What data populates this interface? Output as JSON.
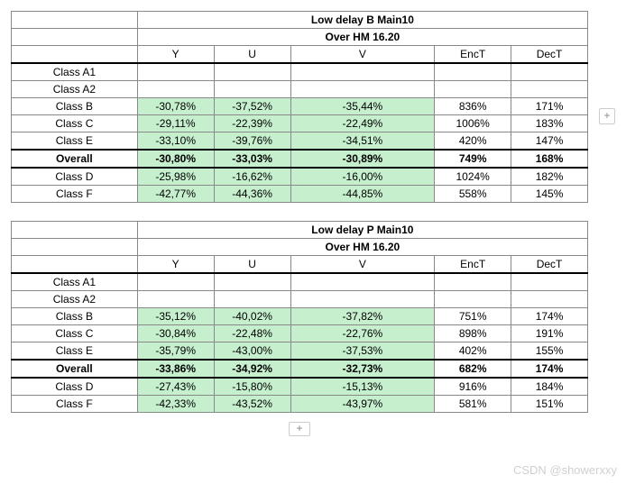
{
  "tables": [
    {
      "title": "Low delay B Main10",
      "subtitle": "Over HM 16.20",
      "headers": [
        "Y",
        "U",
        "V",
        "EncT",
        "DecT"
      ],
      "rows": [
        {
          "label": "Class A1",
          "cells": [
            "",
            "",
            "",
            "",
            ""
          ],
          "green": [
            false,
            false,
            false,
            false,
            false
          ],
          "bold": false
        },
        {
          "label": "Class A2",
          "cells": [
            "",
            "",
            "",
            "",
            ""
          ],
          "green": [
            false,
            false,
            false,
            false,
            false
          ],
          "bold": false
        },
        {
          "label": "Class B",
          "cells": [
            "-30,78%",
            "-37,52%",
            "-35,44%",
            "836%",
            "171%"
          ],
          "green": [
            true,
            true,
            true,
            false,
            false
          ],
          "bold": false
        },
        {
          "label": "Class C",
          "cells": [
            "-29,11%",
            "-22,39%",
            "-22,49%",
            "1006%",
            "183%"
          ],
          "green": [
            true,
            true,
            true,
            false,
            false
          ],
          "bold": false
        },
        {
          "label": "Class E",
          "cells": [
            "-33,10%",
            "-39,76%",
            "-34,51%",
            "420%",
            "147%"
          ],
          "green": [
            true,
            true,
            true,
            false,
            false
          ],
          "bold": false
        },
        {
          "label": "Overall",
          "cells": [
            "-30,80%",
            "-33,03%",
            "-30,89%",
            "749%",
            "168%"
          ],
          "green": [
            true,
            true,
            true,
            false,
            false
          ],
          "bold": true,
          "divider": true
        },
        {
          "label": "Class D",
          "cells": [
            "-25,98%",
            "-16,62%",
            "-16,00%",
            "1024%",
            "182%"
          ],
          "green": [
            true,
            true,
            true,
            false,
            false
          ],
          "bold": false
        },
        {
          "label": "Class F",
          "cells": [
            "-42,77%",
            "-44,36%",
            "-44,85%",
            "558%",
            "145%"
          ],
          "green": [
            true,
            true,
            true,
            false,
            false
          ],
          "bold": false
        }
      ]
    },
    {
      "title": "Low delay P Main10",
      "subtitle": "Over HM 16.20",
      "headers": [
        "Y",
        "U",
        "V",
        "EncT",
        "DecT"
      ],
      "rows": [
        {
          "label": "Class A1",
          "cells": [
            "",
            "",
            "",
            "",
            ""
          ],
          "green": [
            false,
            false,
            false,
            false,
            false
          ],
          "bold": false
        },
        {
          "label": "Class A2",
          "cells": [
            "",
            "",
            "",
            "",
            ""
          ],
          "green": [
            false,
            false,
            false,
            false,
            false
          ],
          "bold": false
        },
        {
          "label": "Class B",
          "cells": [
            "-35,12%",
            "-40,02%",
            "-37,82%",
            "751%",
            "174%"
          ],
          "green": [
            true,
            true,
            true,
            false,
            false
          ],
          "bold": false
        },
        {
          "label": "Class C",
          "cells": [
            "-30,84%",
            "-22,48%",
            "-22,76%",
            "898%",
            "191%"
          ],
          "green": [
            true,
            true,
            true,
            false,
            false
          ],
          "bold": false
        },
        {
          "label": "Class E",
          "cells": [
            "-35,79%",
            "-43,00%",
            "-37,53%",
            "402%",
            "155%"
          ],
          "green": [
            true,
            true,
            true,
            false,
            false
          ],
          "bold": false
        },
        {
          "label": "Overall",
          "cells": [
            "-33,86%",
            "-34,92%",
            "-32,73%",
            "682%",
            "174%"
          ],
          "green": [
            true,
            true,
            true,
            false,
            false
          ],
          "bold": true,
          "divider": true
        },
        {
          "label": "Class D",
          "cells": [
            "-27,43%",
            "-15,80%",
            "-15,13%",
            "916%",
            "184%"
          ],
          "green": [
            true,
            true,
            true,
            false,
            false
          ],
          "bold": false
        },
        {
          "label": "Class F",
          "cells": [
            "-42,33%",
            "-43,52%",
            "-43,97%",
            "581%",
            "151%"
          ],
          "green": [
            true,
            true,
            true,
            false,
            false
          ],
          "bold": false
        }
      ]
    }
  ],
  "watermark": "CSDN @showerxxy",
  "plus": "+",
  "style": {
    "green_bg": "#c6efce",
    "border_color": "#888888",
    "font_size": 12
  }
}
